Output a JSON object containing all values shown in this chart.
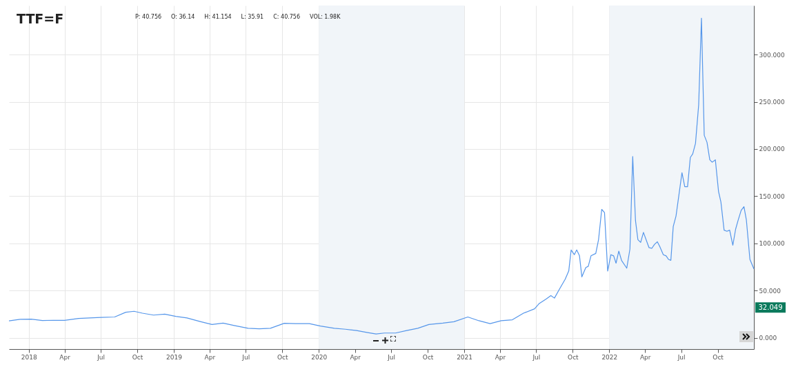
{
  "chart_data": {
    "type": "line",
    "title": "TTF=F",
    "annotations": [
      "P: 40.756",
      "O: 36.14",
      "H: 41.154",
      "L: 35.91",
      "C: 40.756",
      "VOL: 1.98K",
      {
        "text": "32.049",
        "y": 32.049
      }
    ],
    "x": [
      "2017-11-12",
      "2017-12-10",
      "2018-01-07",
      "2018-02-04",
      "2018-03-04",
      "2018-04-01",
      "2018-05-06",
      "2018-06-03",
      "2018-07-01",
      "2018-08-05",
      "2018-09-02",
      "2018-09-23",
      "2018-10-14",
      "2018-11-11",
      "2018-12-09",
      "2019-01-06",
      "2019-02-03",
      "2019-03-10",
      "2019-04-07",
      "2019-05-05",
      "2019-06-02",
      "2019-07-07",
      "2019-08-04",
      "2019-09-01",
      "2019-10-06",
      "2019-11-03",
      "2019-12-08",
      "2020-01-05",
      "2020-02-09",
      "2020-03-08",
      "2020-04-05",
      "2020-05-03",
      "2020-05-24",
      "2020-06-14",
      "2020-07-12",
      "2020-08-09",
      "2020-09-06",
      "2020-10-04",
      "2020-11-08",
      "2020-12-06",
      "2021-01-10",
      "2021-02-07",
      "2021-03-07",
      "2021-04-04",
      "2021-05-02",
      "2021-05-30",
      "2021-06-27",
      "2021-07-08",
      "2021-07-26",
      "2021-08-07",
      "2021-08-16",
      "2021-08-28",
      "2021-09-12",
      "2021-09-21",
      "2021-09-27",
      "2021-10-05",
      "2021-10-11",
      "2021-10-18",
      "2021-10-24",
      "2021-11-03",
      "2021-11-09",
      "2021-11-16",
      "2021-11-28",
      "2021-12-05",
      "2021-12-13",
      "2021-12-20",
      "2021-12-28",
      "2022-01-05",
      "2022-01-12",
      "2022-01-18",
      "2022-01-25",
      "2022-02-01",
      "2022-02-14",
      "2022-02-22",
      "2022-03-01",
      "2022-03-08",
      "2022-03-14",
      "2022-03-21",
      "2022-03-28",
      "2022-04-11",
      "2022-04-18",
      "2022-04-25",
      "2022-05-02",
      "2022-05-08",
      "2022-05-17",
      "2022-05-24",
      "2022-05-30",
      "2022-06-05",
      "2022-06-11",
      "2022-06-18",
      "2022-07-03",
      "2022-07-10",
      "2022-07-17",
      "2022-07-24",
      "2022-07-30",
      "2022-08-06",
      "2022-08-14",
      "2022-08-21",
      "2022-08-28",
      "2022-09-04",
      "2022-09-11",
      "2022-09-17",
      "2022-09-25",
      "2022-10-03",
      "2022-10-09",
      "2022-10-17",
      "2022-10-24",
      "2022-10-31",
      "2022-11-08",
      "2022-11-15",
      "2022-11-21",
      "2022-11-29",
      "2022-12-06",
      "2022-12-12",
      "2022-12-21",
      "2022-12-31"
    ],
    "series": [
      {
        "color": "#5596ea",
        "values": [
          17.9,
          19.5,
          19.7,
          18.2,
          18.5,
          18.4,
          20.5,
          21,
          21.5,
          22,
          27,
          28,
          26,
          24,
          25,
          22.6,
          21,
          17,
          14,
          15.5,
          13,
          10,
          9.5,
          10,
          15.3,
          15,
          15,
          12.4,
          10,
          9,
          7.7,
          5.5,
          4,
          5,
          5,
          7.7,
          10,
          14,
          15.5,
          17,
          22,
          18,
          15,
          18,
          19,
          26,
          30.7,
          36,
          41,
          44.6,
          42,
          51,
          62,
          70.7,
          93,
          88,
          93,
          86.8,
          64.5,
          74.4,
          75.6,
          86.8,
          89.3,
          104,
          136,
          132.7,
          70.7,
          88,
          86.8,
          79,
          91.8,
          81.8,
          73.7,
          94,
          192,
          124,
          104,
          101,
          111.6,
          95.5,
          94.7,
          99,
          101.7,
          96.7,
          88,
          86.8,
          83,
          82,
          117.8,
          129,
          174.9,
          160,
          160,
          191,
          194.7,
          205.9,
          246.8,
          338.5,
          214.5,
          207,
          188.5,
          186,
          188.5,
          155,
          143.8,
          114,
          112.8,
          114,
          98,
          115,
          124,
          135,
          138.9,
          125,
          83,
          73
        ]
      }
    ],
    "xlim": [
      "2017-11-12",
      "2022-12-31"
    ],
    "xticks": [
      {
        "value": "2018-01-01",
        "label": "2018"
      },
      {
        "value": "2018-04-01",
        "label": "Apr"
      },
      {
        "value": "2018-07-01",
        "label": "Jul"
      },
      {
        "value": "2018-10-01",
        "label": "Oct"
      },
      {
        "value": "2019-01-01",
        "label": "2019"
      },
      {
        "value": "2019-04-01",
        "label": "Apr"
      },
      {
        "value": "2019-07-01",
        "label": "Jul"
      },
      {
        "value": "2019-10-01",
        "label": "Oct"
      },
      {
        "value": "2020-01-01",
        "label": "2020"
      },
      {
        "value": "2020-04-01",
        "label": "Apr"
      },
      {
        "value": "2020-07-01",
        "label": "Jul"
      },
      {
        "value": "2020-10-01",
        "label": "Oct"
      },
      {
        "value": "2021-01-01",
        "label": "2021"
      },
      {
        "value": "2021-04-01",
        "label": "Apr"
      },
      {
        "value": "2021-07-01",
        "label": "Jul"
      },
      {
        "value": "2021-10-01",
        "label": "Oct"
      },
      {
        "value": "2022-01-01",
        "label": "2022"
      },
      {
        "value": "2022-04-01",
        "label": "Apr"
      },
      {
        "value": "2022-07-01",
        "label": "Jul"
      },
      {
        "value": "2022-10-01",
        "label": "Oct"
      }
    ],
    "ylim": [
      -12,
      352
    ],
    "yticks": [
      {
        "value": 0,
        "label": "0.000"
      },
      {
        "value": 50,
        "label": "50.000"
      },
      {
        "value": 100,
        "label": "100.000"
      },
      {
        "value": 150,
        "label": "150.000"
      },
      {
        "value": 200,
        "label": "200.000"
      },
      {
        "value": 250,
        "label": "250.000"
      },
      {
        "value": 300,
        "label": "300.000"
      }
    ],
    "grid": true,
    "bands": [
      {
        "axis": "x",
        "from": "2020-01-01",
        "to": "2021-01-01",
        "color": "#f1f5f9"
      },
      {
        "axis": "x",
        "from": "2022-01-01",
        "to": "2022-12-31",
        "color": "#f1f5f9"
      }
    ]
  }
}
